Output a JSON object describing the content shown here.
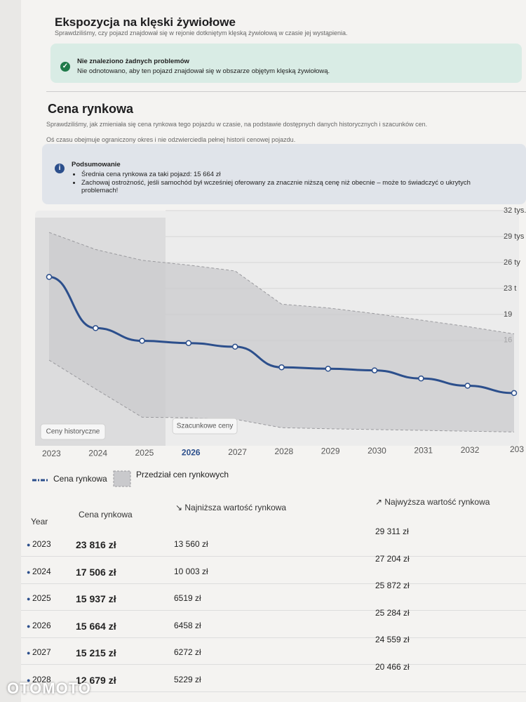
{
  "flood": {
    "title": "Ekspozycja na klęski żywiołowe",
    "description": "Sprawdziliśmy, czy pojazd znajdował się w rejonie dotkniętym klęską żywiołową w czasie jej wystąpienia.",
    "alert_title": "Nie znaleziono żadnych problemów",
    "alert_text": "Nie odnotowano, aby ten pojazd znajdował się w obszarze objętym klęską żywiołową."
  },
  "market": {
    "title": "Cena rynkowa",
    "description": "Sprawdziliśmy, jak zmieniała się cena rynkowa tego pojazdu w czasie, na podstawie dostępnych danych historycznych i szacunków cen.",
    "note": "Oś czasu obejmuje ograniczony okres i nie odzwierciedla pełnej historii cenowej pojazdu.",
    "summary_title": "Podsumowanie",
    "summary_items": [
      "Średnia cena rynkowa za taki pojazd: 15 664 zł",
      "Zachowaj ostrożność, jeśli samochód był wcześniej oferowany za znacznie niższą cenę niż obecnie – może to świadczyć o ukrytych problemach!"
    ]
  },
  "chart_data": {
    "type": "line",
    "categories": [
      "2023",
      "2024",
      "2025",
      "2026",
      "2027",
      "2028",
      "2029",
      "2030",
      "2031",
      "2032",
      "203"
    ],
    "highlight_index": 3,
    "historical_until_index": 3,
    "region_labels": [
      "Ceny historyczne",
      "Szacunkowe ceny"
    ],
    "series": [
      {
        "name": "Cena rynkowa",
        "color": "#2c4f8c",
        "values": [
          23816,
          17506,
          15937,
          15664,
          15215,
          12679,
          12500,
          12300,
          11300,
          10400,
          9500
        ]
      },
      {
        "name": "Przedział cen rynkowych",
        "color": "#c9c9cc",
        "values": [
          29311,
          27204,
          25872,
          25284,
          24559,
          20466,
          20000,
          19300,
          18500,
          17700,
          16800
        ],
        "low": [
          13560,
          10003,
          6519,
          6458,
          6272,
          5229,
          5100,
          5000,
          4900,
          4800,
          4700
        ]
      }
    ],
    "ylim": [
      3000,
      32000
    ],
    "yticks": [
      {
        "value": 32000,
        "label": "32 tys."
      },
      {
        "value": 28800,
        "label": "29 tys"
      },
      {
        "value": 25600,
        "label": "26 ty"
      },
      {
        "value": 22400,
        "label": "23 t"
      },
      {
        "value": 19200,
        "label": "19"
      },
      {
        "value": 16000,
        "label": "16"
      }
    ],
    "grid": true
  },
  "table": {
    "headers": [
      "Year",
      "Cena rynkowa",
      "Najniższa wartość rynkowa",
      "Najwyższa wartość rynkowa"
    ],
    "rows": [
      [
        "2023",
        "23 816 zł",
        "13 560 zł",
        "29 311 zł"
      ],
      [
        "2024",
        "17 506 zł",
        "10 003 zł",
        "27 204 zł"
      ],
      [
        "2025",
        "15 937 zł",
        "6519 zł",
        "25 872 zł"
      ],
      [
        "2026",
        "15 664 zł",
        "6458 zł",
        "25 284 zł"
      ],
      [
        "2027",
        "15 215 zł",
        "6272 zł",
        "24 559 zł"
      ],
      [
        "2028",
        "12 679 zł",
        "5229 zł",
        "20 466 zł"
      ]
    ]
  },
  "watermark": "OTOMOTO"
}
